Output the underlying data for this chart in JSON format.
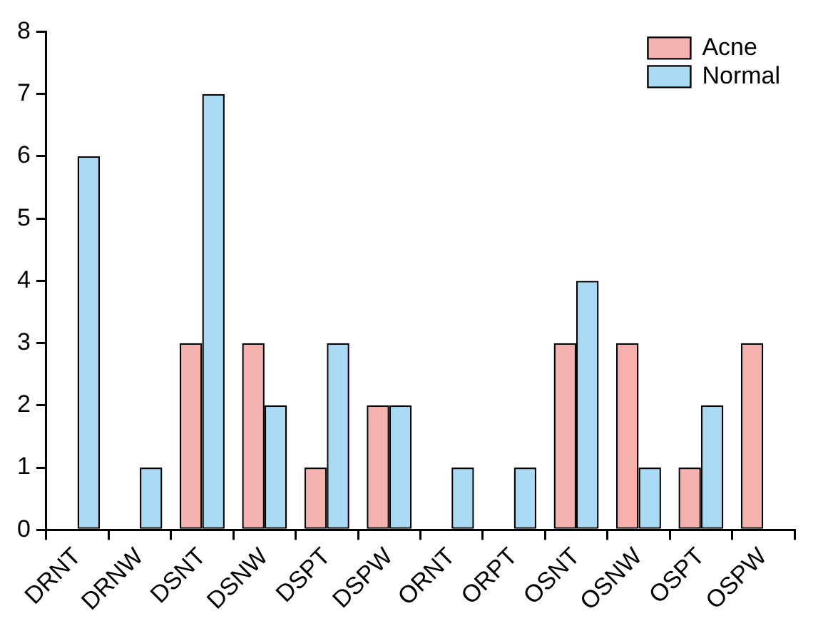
{
  "chart_data": {
    "type": "bar",
    "categories": [
      "DRNT",
      "DRNW",
      "DSNT",
      "DSNW",
      "DSPT",
      "DSPW",
      "ORNT",
      "ORPT",
      "OSNT",
      "OSNW",
      "OSPT",
      "OSPW"
    ],
    "series": [
      {
        "name": "Acne",
        "color": "#f4b1ad",
        "values": [
          0,
          0,
          3,
          3,
          1,
          2,
          0,
          0,
          3,
          3,
          1,
          3
        ]
      },
      {
        "name": "Normal",
        "color": "#a9daf3",
        "values": [
          6,
          1,
          7,
          2,
          3,
          2,
          1,
          1,
          4,
          1,
          2,
          0
        ]
      }
    ],
    "ylim": [
      0,
      8
    ],
    "yticks": [
      0,
      1,
      2,
      3,
      4,
      5,
      6,
      7,
      8
    ],
    "grid": false,
    "legend": "top right"
  }
}
